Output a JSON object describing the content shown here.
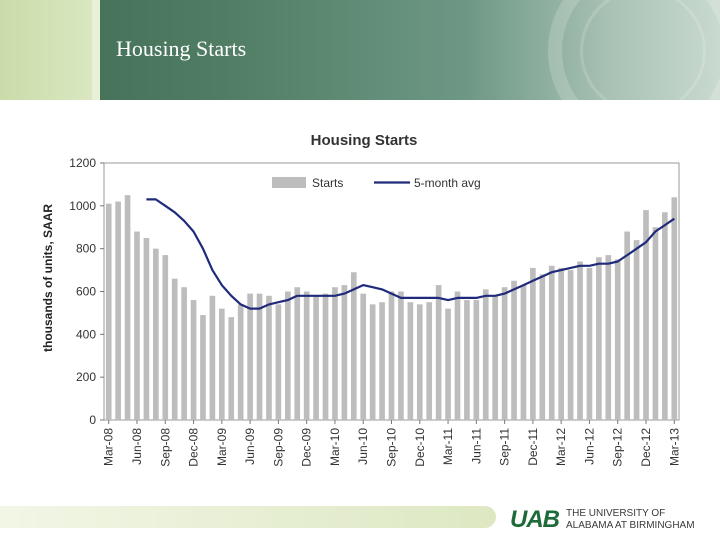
{
  "header": {
    "title": "Housing Starts"
  },
  "logo": {
    "mark": "UAB",
    "line1": "THE UNIVERSITY OF",
    "line2": "ALABAMA AT BIRMINGHAM"
  },
  "chart_data": {
    "type": "bar",
    "title": "Housing Starts",
    "ylabel": "thousands of units, SAAR",
    "xlabel": "",
    "ylim": [
      0,
      1200
    ],
    "yticks": [
      0,
      200,
      400,
      600,
      800,
      1000,
      1200
    ],
    "xtick_labels": [
      "Mar-08",
      "Jun-08",
      "Sep-08",
      "Dec-08",
      "Mar-09",
      "Jun-09",
      "Sep-09",
      "Dec-09",
      "Mar-10",
      "Jun-10",
      "Sep-10",
      "Dec-10",
      "Mar-11",
      "Jun-11",
      "Sep-11",
      "Dec-11",
      "Mar-12",
      "Jun-12",
      "Sep-12",
      "Dec-12",
      "Mar-13"
    ],
    "legend": {
      "position": "top",
      "entries": [
        "Starts",
        "5-month avg"
      ]
    },
    "colors": {
      "bars": "#bdbdbd",
      "line": "#1f2a7a"
    },
    "series": [
      {
        "name": "Starts",
        "kind": "bar",
        "values": [
          1010,
          1020,
          1050,
          880,
          850,
          800,
          770,
          660,
          620,
          560,
          490,
          580,
          520,
          480,
          540,
          590,
          590,
          580,
          540,
          600,
          620,
          600,
          580,
          590,
          620,
          630,
          690,
          590,
          540,
          550,
          600,
          600,
          550,
          540,
          550,
          630,
          520,
          600,
          560,
          560,
          610,
          580,
          620,
          650,
          630,
          710,
          680,
          720,
          710,
          700,
          740,
          710,
          760,
          770,
          750,
          880,
          840,
          980,
          900,
          970,
          1040
        ]
      },
      {
        "name": "5-month avg",
        "kind": "line",
        "values": [
          1030,
          1030,
          1000,
          970,
          930,
          880,
          800,
          700,
          630,
          580,
          540,
          520,
          520,
          540,
          550,
          560,
          580,
          580,
          580,
          580,
          580,
          590,
          610,
          630,
          620,
          610,
          590,
          570,
          570,
          570,
          570,
          570,
          560,
          570,
          570,
          570,
          580,
          580,
          590,
          610,
          630,
          650,
          670,
          690,
          700,
          710,
          720,
          720,
          730,
          730,
          740,
          770,
          800,
          830,
          880,
          910,
          940
        ]
      }
    ]
  }
}
